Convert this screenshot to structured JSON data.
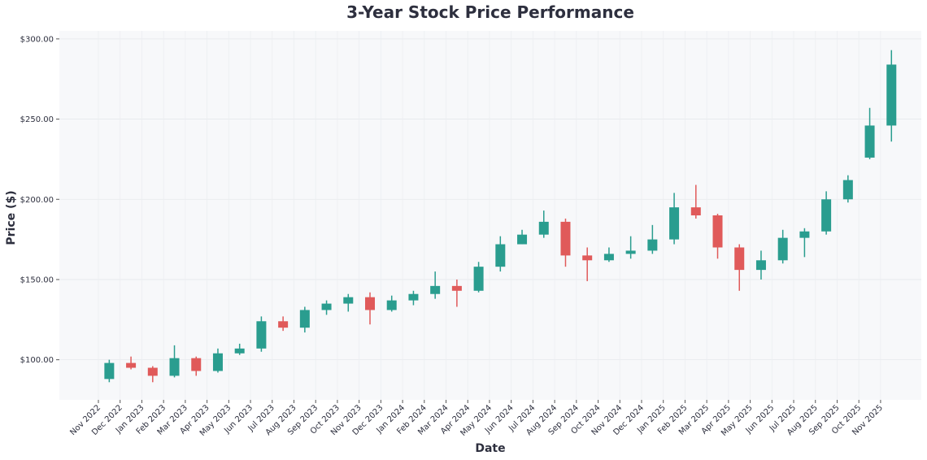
{
  "chart_data": {
    "type": "candlestick",
    "title": "3-Year Stock Price Performance",
    "x_label": "Date",
    "y_label": "Price ($)",
    "x": [
      "Nov 2022",
      "Dec 2022",
      "Jan 2023",
      "Feb 2023",
      "Mar 2023",
      "Apr 2023",
      "May 2023",
      "Jun 2023",
      "Jul 2023",
      "Aug 2023",
      "Sep 2023",
      "Oct 2023",
      "Nov 2023",
      "Dec 2023",
      "Jan 2024",
      "Feb 2024",
      "Mar 2024",
      "Apr 2024",
      "May 2024",
      "Jun 2024",
      "Jul 2024",
      "Aug 2024",
      "Sep 2024",
      "Oct 2024",
      "Nov 2024",
      "Dec 2024",
      "Jan 2025",
      "Feb 2025",
      "Mar 2025",
      "Apr 2025",
      "May 2025",
      "Jun 2025",
      "Jul 2025",
      "Aug 2025",
      "Sep 2025",
      "Oct 2025",
      "Nov 2025"
    ],
    "open": [
      88,
      98,
      95,
      90,
      101,
      93,
      104,
      107,
      124,
      120,
      131,
      135,
      139,
      131,
      137,
      141,
      146,
      143,
      158,
      172,
      178,
      186,
      165,
      162,
      166,
      168,
      175,
      195,
      190,
      170,
      156,
      162,
      176,
      180,
      200,
      226,
      246
    ],
    "high": [
      100,
      102,
      96,
      109,
      102,
      107,
      110,
      127,
      127,
      133,
      137,
      141,
      142,
      140,
      143,
      155,
      150,
      161,
      177,
      181,
      193,
      188,
      170,
      170,
      177,
      184,
      204,
      209,
      191,
      172,
      168,
      181,
      182,
      205,
      215,
      257,
      293
    ],
    "low": [
      86,
      94,
      86,
      89,
      90,
      92,
      103,
      105,
      118,
      117,
      128,
      130,
      122,
      130,
      134,
      138,
      133,
      142,
      155,
      172,
      176,
      158,
      149,
      161,
      163,
      166,
      172,
      188,
      163,
      143,
      150,
      160,
      164,
      178,
      198,
      225,
      236
    ],
    "close": [
      98,
      95,
      90,
      101,
      93,
      104,
      107,
      124,
      120,
      131,
      135,
      139,
      131,
      137,
      141,
      146,
      143,
      158,
      172,
      178,
      186,
      165,
      162,
      166,
      168,
      175,
      195,
      190,
      170,
      156,
      162,
      176,
      180,
      200,
      212,
      246,
      284
    ],
    "up_color": "#2a9d8f",
    "down_color": "#e05a5a",
    "ylim": [
      75,
      305
    ],
    "yticks": [
      {
        "value": 100,
        "label": "$100.00"
      },
      {
        "value": 150,
        "label": "$150.00"
      },
      {
        "value": 200,
        "label": "$200.00"
      },
      {
        "value": 250,
        "label": "$250.00"
      },
      {
        "value": 300,
        "label": "$300.00"
      }
    ],
    "grid": true
  }
}
